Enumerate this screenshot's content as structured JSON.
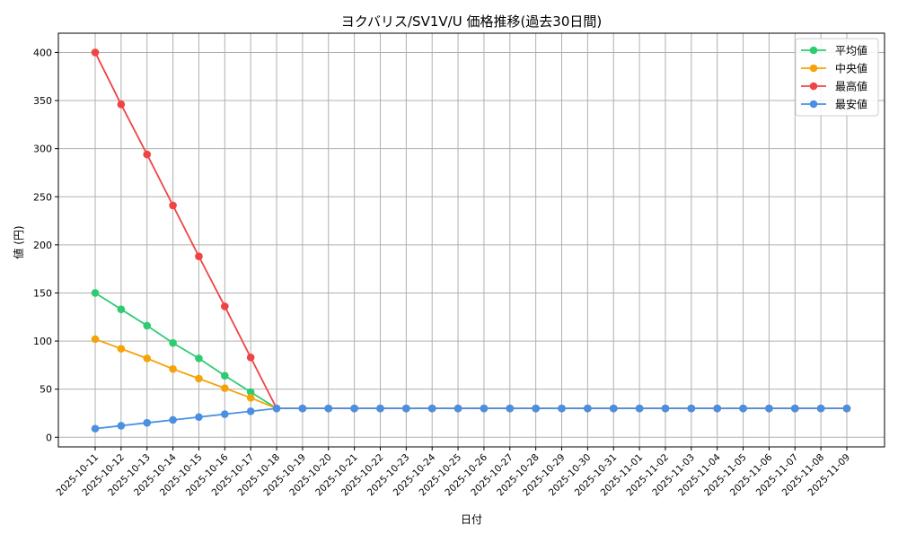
{
  "chart_data": {
    "type": "line",
    "title": "ヨクバリス/SV1V/U 価格推移(過去30日間)",
    "xlabel": "日付",
    "ylabel": "値 (円)",
    "ylim": [
      -10,
      420
    ],
    "yticks": [
      0,
      50,
      100,
      150,
      200,
      250,
      300,
      350,
      400
    ],
    "grid": true,
    "legend_position": "top-right",
    "categories": [
      "2025-10-11",
      "2025-10-12",
      "2025-10-13",
      "2025-10-14",
      "2025-10-15",
      "2025-10-16",
      "2025-10-17",
      "2025-10-18",
      "2025-10-19",
      "2025-10-20",
      "2025-10-21",
      "2025-10-22",
      "2025-10-23",
      "2025-10-24",
      "2025-10-25",
      "2025-10-26",
      "2025-10-27",
      "2025-10-28",
      "2025-10-29",
      "2025-10-30",
      "2025-10-31",
      "2025-11-01",
      "2025-11-02",
      "2025-11-03",
      "2025-11-04",
      "2025-11-05",
      "2025-11-06",
      "2025-11-07",
      "2025-11-08",
      "2025-11-09"
    ],
    "series": [
      {
        "name": "平均値",
        "color": "#2ecc71",
        "values": [
          150,
          133,
          116,
          98,
          82,
          64,
          47,
          30,
          30,
          30,
          30,
          30,
          30,
          30,
          30,
          30,
          30,
          30,
          30,
          30,
          30,
          30,
          30,
          30,
          30,
          30,
          30,
          30,
          30,
          30
        ]
      },
      {
        "name": "中央値",
        "color": "#f5a30a",
        "values": [
          102,
          92,
          82,
          71,
          61,
          51,
          41,
          30,
          30,
          30,
          30,
          30,
          30,
          30,
          30,
          30,
          30,
          30,
          30,
          30,
          30,
          30,
          30,
          30,
          30,
          30,
          30,
          30,
          30,
          30
        ]
      },
      {
        "name": "最高値",
        "color": "#ef4444",
        "values": [
          400,
          346,
          294,
          241,
          188,
          136,
          83,
          30,
          30,
          30,
          30,
          30,
          30,
          30,
          30,
          30,
          30,
          30,
          30,
          30,
          30,
          30,
          30,
          30,
          30,
          30,
          30,
          30,
          30,
          30
        ]
      },
      {
        "name": "最安値",
        "color": "#4a90e2",
        "values": [
          9,
          12,
          15,
          18,
          21,
          24,
          27,
          30,
          30,
          30,
          30,
          30,
          30,
          30,
          30,
          30,
          30,
          30,
          30,
          30,
          30,
          30,
          30,
          30,
          30,
          30,
          30,
          30,
          30,
          30
        ]
      }
    ]
  }
}
